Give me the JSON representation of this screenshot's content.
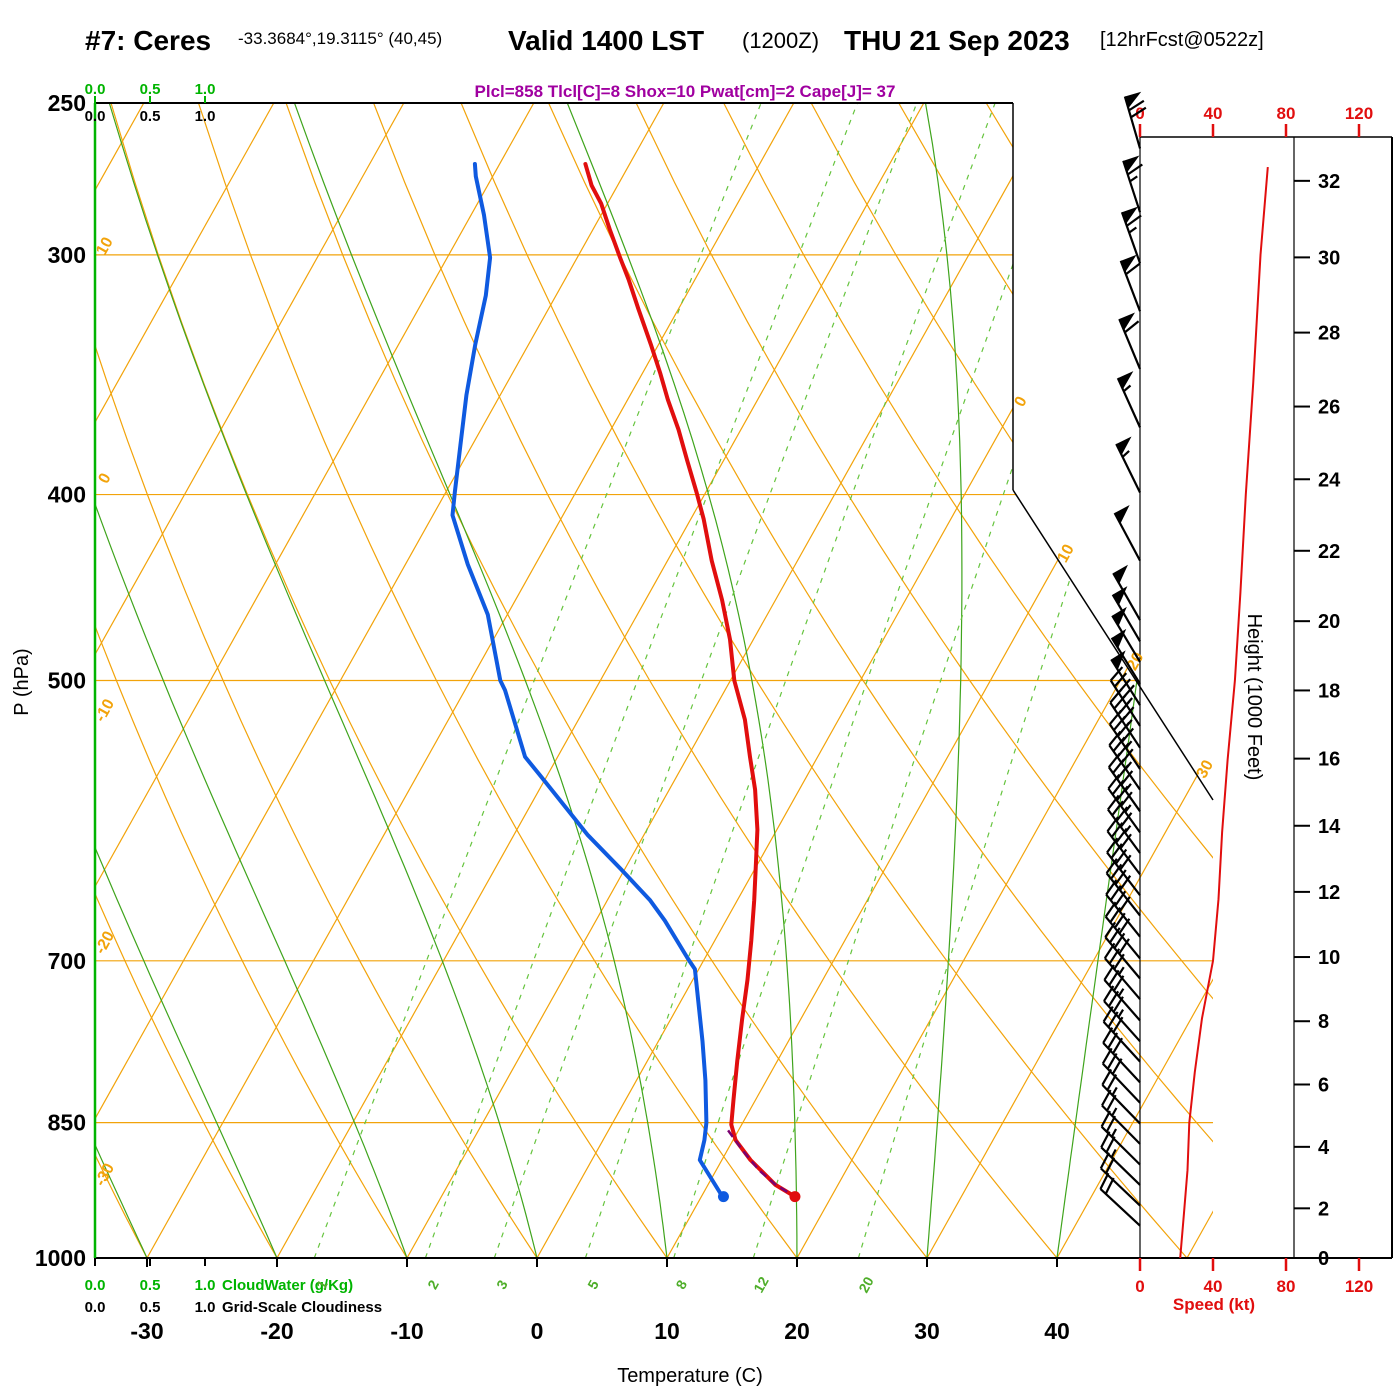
{
  "header": {
    "station": "#7: Ceres",
    "coords": "-33.3684°,19.3115° (40,45)",
    "valid": "Valid 1400 LST",
    "valid_zulu": "(1200Z)",
    "valid_date": "THU 21 Sep 2023",
    "forecast": "[12hrFcst@0522z]",
    "params": "Plcl=858 Tlcl[C]=8 Shox=10 Pwat[cm]=2 Cape[J]= 37"
  },
  "axes": {
    "pressure_label": "P (hPa)",
    "temp_label": "Temperature (C)",
    "height_label": "Height (1000 Feet)",
    "speed_label": "Speed (kt)",
    "cloudwater_label": "CloudWater (g/Kg)",
    "cloudiness_label": "Grid-Scale Cloudiness",
    "pressure_ticks": [
      250,
      300,
      400,
      500,
      700,
      850,
      1000
    ],
    "temp_ticks": [
      -30,
      -20,
      -10,
      0,
      10,
      20,
      30,
      40
    ],
    "height_ticks": [
      0,
      2,
      4,
      6,
      8,
      10,
      12,
      14,
      16,
      18,
      20,
      22,
      24,
      26,
      28,
      30,
      32
    ],
    "speed_ticks": [
      0,
      40,
      80,
      120
    ],
    "cloud_ticks": [
      "0.0",
      "0.5",
      "1.0"
    ]
  },
  "colors": {
    "temperature": "#e10e0e",
    "dewpoint": "#0f5ae0",
    "parcel": "#7a0070",
    "grid_orange": "#f2a30a",
    "moist_green": "#3fa41c",
    "mixing_green": "#66c43e",
    "cloud_green": "#00b400",
    "speed_red": "#e10e0e",
    "barb_black": "#000000",
    "params_magenta": "#a000a0"
  },
  "chart_data": {
    "type": "line",
    "subtype": "skew-t-log-p-sounding",
    "pressure_range_hPa": [
      250,
      1000
    ],
    "surface": {
      "pressure": 929,
      "temperature_C": 17.2,
      "dewpoint_C": 11.7
    },
    "temperature_curve": [
      [
        929,
        17.2
      ],
      [
        916,
        15.2
      ],
      [
        889,
        12.2
      ],
      [
        868,
        10.2
      ],
      [
        852,
        9.2
      ],
      [
        827,
        8.3
      ],
      [
        789,
        6.9
      ],
      [
        751,
        5.5
      ],
      [
        716,
        4.2
      ],
      [
        683,
        2.8
      ],
      [
        651,
        1.3
      ],
      [
        620,
        -0.3
      ],
      [
        598,
        -1.5
      ],
      [
        570,
        -3.4
      ],
      [
        548,
        -5.2
      ],
      [
        524,
        -7.2
      ],
      [
        500,
        -9.7
      ],
      [
        476,
        -11.8
      ],
      [
        454,
        -14.1
      ],
      [
        433,
        -16.6
      ],
      [
        412,
        -19.0
      ],
      [
        399,
        -20.7
      ],
      [
        384,
        -22.8
      ],
      [
        370,
        -24.8
      ],
      [
        357,
        -26.9
      ],
      [
        346,
        -28.6
      ],
      [
        334,
        -30.6
      ],
      [
        320,
        -33.1
      ],
      [
        309,
        -35.1
      ],
      [
        301,
        -36.7
      ],
      [
        291,
        -38.7
      ],
      [
        282,
        -40.5
      ],
      [
        276,
        -42.0
      ],
      [
        269,
        -43.4
      ]
    ],
    "dewpoint_curve": [
      [
        930,
        11.7
      ],
      [
        889,
        8.3
      ],
      [
        868,
        7.8
      ],
      [
        850,
        7.2
      ],
      [
        808,
        5.3
      ],
      [
        771,
        3.4
      ],
      [
        707,
        -0.3
      ],
      [
        698,
        -1.3
      ],
      [
        667,
        -4.7
      ],
      [
        651,
        -6.7
      ],
      [
        627,
        -10.3
      ],
      [
        602,
        -14.3
      ],
      [
        577,
        -18.0
      ],
      [
        560,
        -20.6
      ],
      [
        548,
        -22.5
      ],
      [
        506,
        -26.9
      ],
      [
        500,
        -27.7
      ],
      [
        462,
        -31.5
      ],
      [
        435,
        -35.2
      ],
      [
        410,
        -38.5
      ],
      [
        399,
        -39.3
      ],
      [
        377,
        -40.9
      ],
      [
        355,
        -42.6
      ],
      [
        334,
        -44.1
      ],
      [
        315,
        -45.4
      ],
      [
        301,
        -46.7
      ],
      [
        286,
        -49.0
      ],
      [
        273,
        -51.3
      ],
      [
        269,
        -51.9
      ]
    ],
    "parcel_curve": [
      [
        858,
        9.2
      ],
      [
        880,
        11.3
      ],
      [
        900,
        13.3
      ],
      [
        915,
        15.1
      ],
      [
        929,
        17.2
      ]
    ],
    "speed_profile_kt": [
      [
        1000,
        22
      ],
      [
        950,
        24
      ],
      [
        900,
        26
      ],
      [
        850,
        27
      ],
      [
        800,
        30
      ],
      [
        750,
        34
      ],
      [
        700,
        40
      ],
      [
        650,
        43
      ],
      [
        600,
        45
      ],
      [
        550,
        48
      ],
      [
        500,
        52
      ],
      [
        450,
        55
      ],
      [
        400,
        58
      ],
      [
        350,
        62
      ],
      [
        300,
        66
      ],
      [
        270,
        70
      ]
    ],
    "wind_barbs_kt": [
      [
        264,
        70
      ],
      [
        285,
        65
      ],
      [
        303,
        65
      ],
      [
        321,
        60
      ],
      [
        344,
        60
      ],
      [
        369,
        55
      ],
      [
        399,
        55
      ],
      [
        433,
        50
      ],
      [
        465,
        50
      ],
      [
        477,
        50
      ],
      [
        489,
        50
      ],
      [
        502,
        50
      ],
      [
        515,
        50
      ],
      [
        528,
        45
      ],
      [
        542,
        45
      ],
      [
        556,
        45
      ],
      [
        570,
        45
      ],
      [
        585,
        45
      ],
      [
        600,
        45
      ],
      [
        615,
        45
      ],
      [
        631,
        40
      ],
      [
        647,
        40
      ],
      [
        663,
        40
      ],
      [
        680,
        40
      ],
      [
        698,
        40
      ],
      [
        715,
        40
      ],
      [
        733,
        35
      ],
      [
        752,
        35
      ],
      [
        771,
        35
      ],
      [
        790,
        30
      ],
      [
        810,
        30
      ],
      [
        830,
        30
      ],
      [
        851,
        25
      ],
      [
        872,
        25
      ],
      [
        894,
        25
      ],
      [
        916,
        25
      ],
      [
        939,
        20
      ],
      [
        962,
        20
      ]
    ],
    "grid": {
      "isobars": [
        300,
        400,
        500,
        700,
        850,
        1000
      ],
      "isotherms": {
        "start": -100,
        "end": 50,
        "step": 10
      },
      "dry_adiabats": {
        "start": -30,
        "end": 150,
        "step": 10
      },
      "moist_adiabats": [
        -40,
        -30,
        -20,
        -10,
        0,
        10,
        20,
        30,
        40
      ],
      "mixing_ratios": [
        1,
        2,
        3,
        5,
        8,
        12,
        20
      ],
      "left_isotherm_labels": [
        10,
        0,
        -10,
        -20,
        -30
      ],
      "right_isotherm_labels": [
        0,
        10,
        20,
        30
      ]
    }
  }
}
